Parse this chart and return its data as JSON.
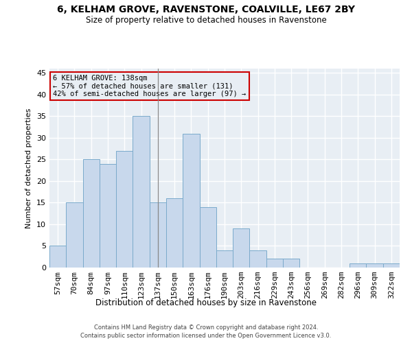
{
  "title1": "6, KELHAM GROVE, RAVENSTONE, COALVILLE, LE67 2BY",
  "title2": "Size of property relative to detached houses in Ravenstone",
  "xlabel": "Distribution of detached houses by size in Ravenstone",
  "ylabel": "Number of detached properties",
  "footer1": "Contains HM Land Registry data © Crown copyright and database right 2024.",
  "footer2": "Contains public sector information licensed under the Open Government Licence v3.0.",
  "annotation_line1": "6 KELHAM GROVE: 138sqm",
  "annotation_line2": "← 57% of detached houses are smaller (131)",
  "annotation_line3": "42% of semi-detached houses are larger (97) →",
  "bar_color": "#c8d8ec",
  "bar_edge_color": "#7aaacb",
  "vline_color": "#888888",
  "annotation_box_edge": "#cc0000",
  "categories": [
    "57sqm",
    "70sqm",
    "84sqm",
    "97sqm",
    "110sqm",
    "123sqm",
    "137sqm",
    "150sqm",
    "163sqm",
    "176sqm",
    "190sqm",
    "203sqm",
    "216sqm",
    "229sqm",
    "243sqm",
    "256sqm",
    "269sqm",
    "282sqm",
    "296sqm",
    "309sqm",
    "322sqm"
  ],
  "values": [
    5,
    15,
    25,
    24,
    27,
    35,
    15,
    16,
    31,
    14,
    4,
    9,
    4,
    2,
    2,
    0,
    0,
    0,
    1,
    1,
    1
  ],
  "vline_x": 6,
  "ylim": [
    0,
    46
  ],
  "yticks": [
    0,
    5,
    10,
    15,
    20,
    25,
    30,
    35,
    40,
    45
  ],
  "bg_color": "#e8eef4",
  "grid_color": "#ffffff",
  "fig_bg_color": "#ffffff"
}
